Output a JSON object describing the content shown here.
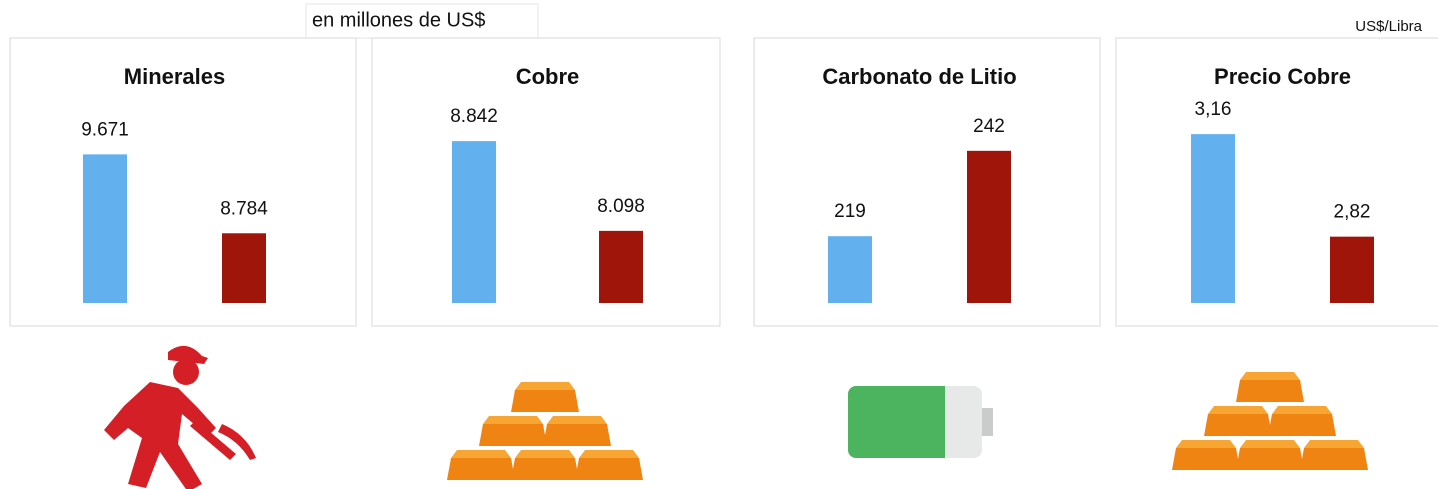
{
  "annotations": [
    "en millones de US$",
    "US$/Libra"
  ],
  "chart_data": [
    {
      "type": "bar",
      "title": "Minerales",
      "values": [
        9671,
        8784
      ],
      "value_labels": [
        "9.671",
        "8.784"
      ],
      "colors": [
        "#63b0ef",
        "#a01509"
      ],
      "ylim": [
        8000,
        10170
      ]
    },
    {
      "type": "bar",
      "title": "Cobre",
      "values": [
        8842,
        8098
      ],
      "value_labels": [
        "8.842",
        "8.098"
      ],
      "colors": [
        "#63b0ef",
        "#a01509"
      ],
      "ylim": [
        7500,
        9100
      ]
    },
    {
      "type": "bar",
      "title": "Carbonato de Litio",
      "values": [
        219,
        242
      ],
      "value_labels": [
        "219",
        "242"
      ],
      "colors": [
        "#63b0ef",
        "#a01509"
      ],
      "ylim": [
        201,
        253
      ]
    },
    {
      "type": "bar",
      "title": "Precio Cobre",
      "values": [
        3.16,
        2.82
      ],
      "value_labels": [
        "3,16",
        "2,82"
      ],
      "colors": [
        "#63b0ef",
        "#a01509"
      ],
      "ylim": [
        2.6,
        3.24
      ]
    }
  ]
}
